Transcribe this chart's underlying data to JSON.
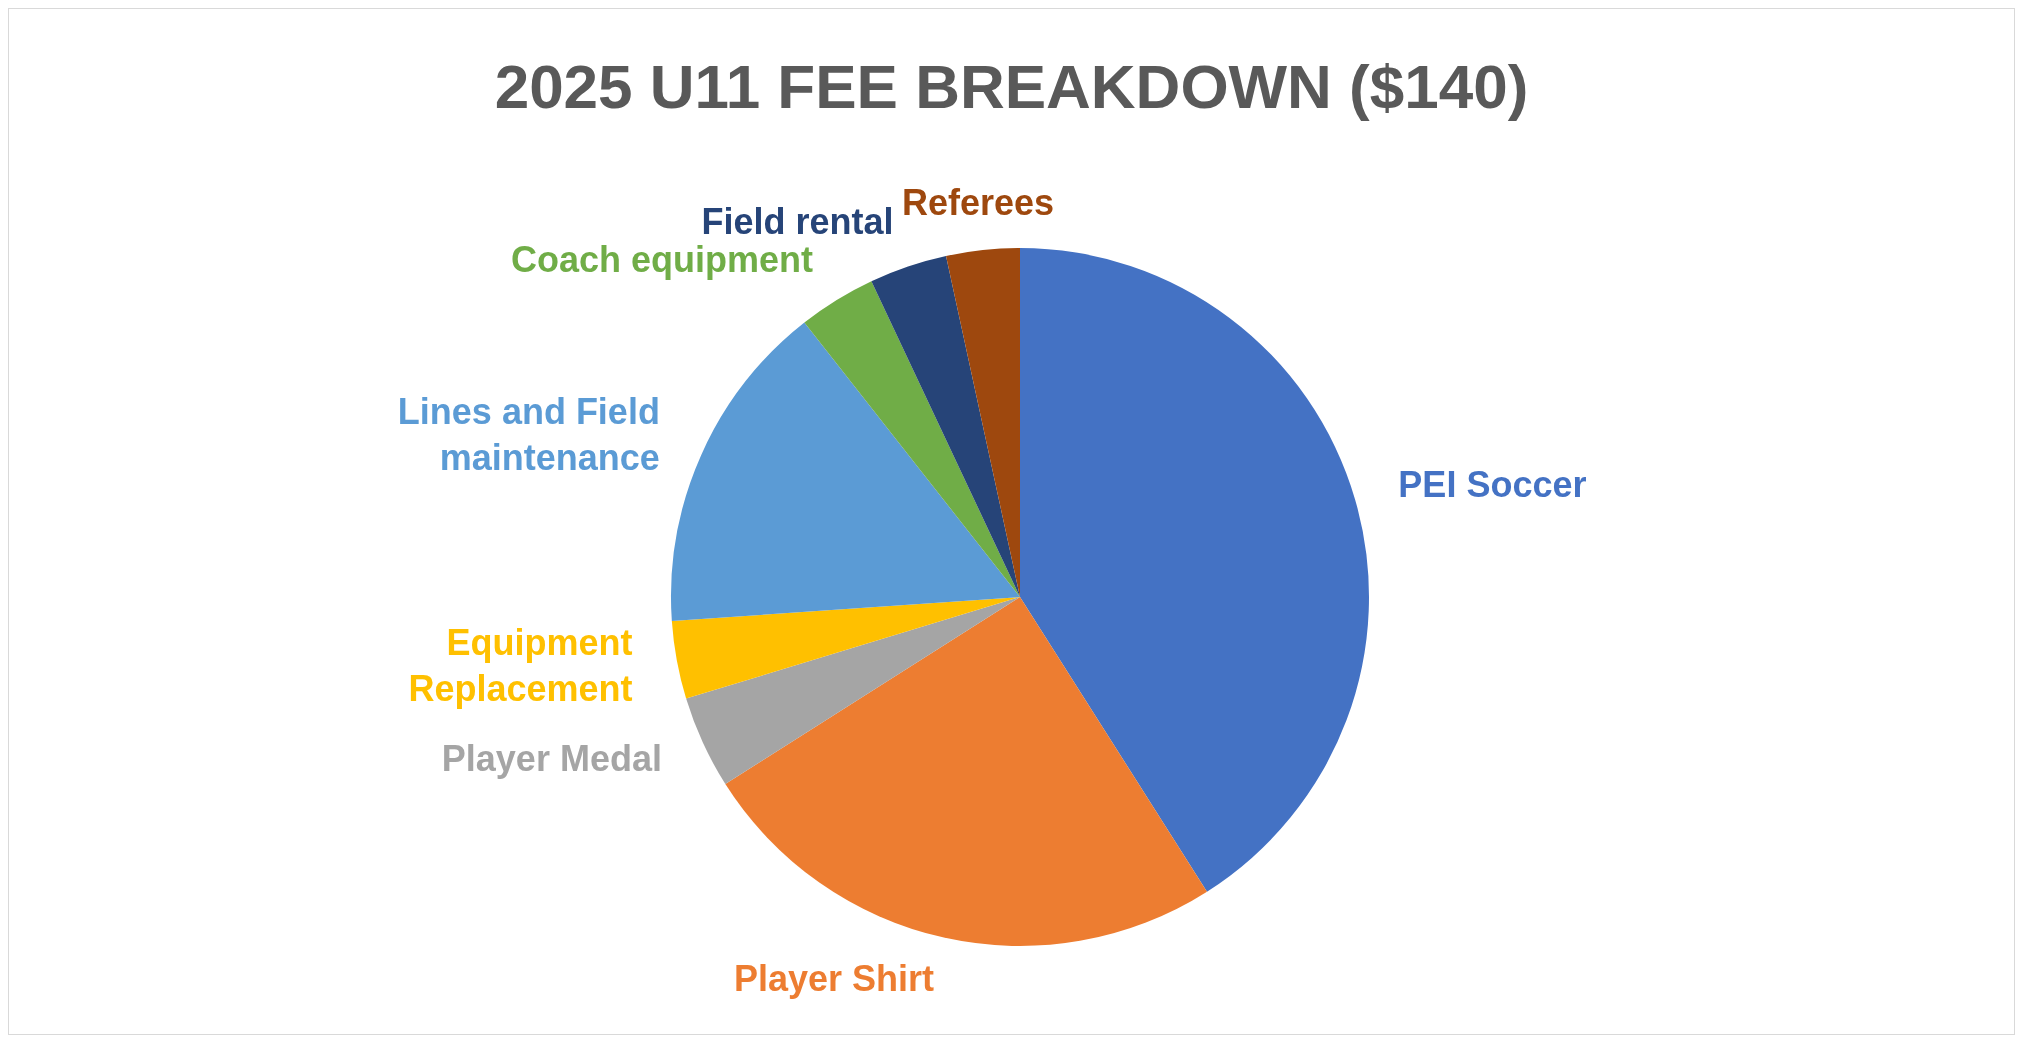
{
  "chart_data": {
    "type": "pie",
    "title": "2025 U11 FEE BREAKDOWN ($140)",
    "categories": [
      "PEI Soccer",
      "Player Shirt",
      "Player Medal",
      "Equipment Replacement",
      "Lines and Field maintenance",
      "Coach equipment",
      "Field rental",
      "Referees"
    ],
    "values": [
      41,
      25,
      4.3,
      3.6,
      15.5,
      3.6,
      3.6,
      3.4
    ],
    "colors": [
      "#4472c4",
      "#ed7d31",
      "#a5a5a5",
      "#ffc000",
      "#5b9bd5",
      "#70ad47",
      "#264478",
      "#9e480e"
    ],
    "legend": false
  }
}
